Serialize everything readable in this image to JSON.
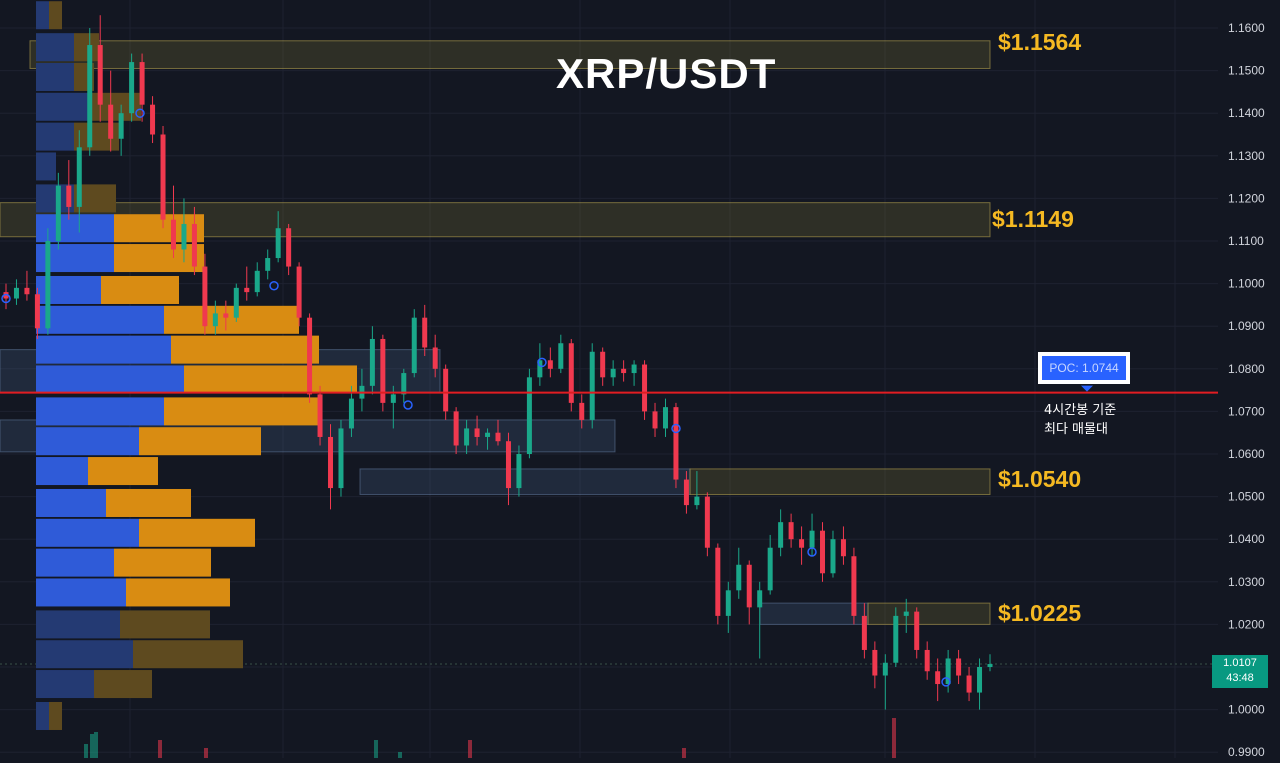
{
  "chart_data": {
    "type": "candlestick",
    "title": "XRP/USDT",
    "y_axis": {
      "range": [
        0.99,
        1.165
      ],
      "ticks": [
        "1.1600",
        "1.1500",
        "1.1400",
        "1.1300",
        "1.1200",
        "1.1100",
        "1.1000",
        "1.0900",
        "1.0800",
        "1.0700",
        "1.0600",
        "1.0500",
        "1.0400",
        "1.0300",
        "1.0200",
        "1.0100",
        "1.0000",
        "0.9900"
      ]
    },
    "grid": true,
    "current_price": {
      "value": "1.0107",
      "countdown": "43:48"
    },
    "poc": {
      "label": "POC: 1.0744",
      "value": 1.0744,
      "caption": "4시간봉 기준\n최다 매물대"
    },
    "key_levels": [
      {
        "label": "$1.1564",
        "value": 1.1564
      },
      {
        "label": "$1.1149",
        "value": 1.1149
      },
      {
        "label": "$1.0540",
        "value": 1.054
      },
      {
        "label": "$1.0225",
        "value": 1.0225
      }
    ],
    "zones": [
      {
        "top": 1.157,
        "bottom": 1.1505,
        "from": 30,
        "to": 990,
        "kind": "resistance"
      },
      {
        "top": 1.119,
        "bottom": 1.111,
        "from": 0,
        "to": 990,
        "kind": "resistance"
      },
      {
        "top": 1.0845,
        "bottom": 1.0745,
        "from": 0,
        "to": 440,
        "kind": "demand"
      },
      {
        "top": 1.068,
        "bottom": 1.0605,
        "from": 0,
        "to": 615,
        "kind": "demand"
      },
      {
        "top": 1.0565,
        "bottom": 1.0505,
        "from": 360,
        "to": 690,
        "kind": "demand"
      },
      {
        "top": 1.0565,
        "bottom": 1.0505,
        "from": 690,
        "to": 990,
        "kind": "resistance"
      },
      {
        "top": 1.025,
        "bottom": 1.02,
        "from": 760,
        "to": 868,
        "kind": "demand"
      },
      {
        "top": 1.025,
        "bottom": 1.02,
        "from": 868,
        "to": 990,
        "kind": "resistance"
      }
    ],
    "volume_profile": [
      {
        "price": 1.163,
        "buy": 13,
        "sell": 13,
        "dim": true
      },
      {
        "price": 1.1555,
        "buy": 38,
        "sell": 25,
        "dim": true
      },
      {
        "price": 1.1485,
        "buy": 38,
        "sell": 20,
        "dim": true
      },
      {
        "price": 1.1415,
        "buy": 55,
        "sell": 50,
        "dim": true
      },
      {
        "price": 1.1345,
        "buy": 38,
        "sell": 45,
        "dim": true
      },
      {
        "price": 1.1275,
        "buy": 20,
        "sell": 0,
        "dim": true
      },
      {
        "price": 1.12,
        "buy": 38,
        "sell": 42,
        "dim": true
      },
      {
        "price": 1.113,
        "buy": 78,
        "sell": 90
      },
      {
        "price": 1.106,
        "buy": 78,
        "sell": 90
      },
      {
        "price": 1.0985,
        "buy": 65,
        "sell": 78
      },
      {
        "price": 1.0915,
        "buy": 128,
        "sell": 135
      },
      {
        "price": 1.0845,
        "buy": 135,
        "sell": 148
      },
      {
        "price": 1.0775,
        "buy": 148,
        "sell": 173
      },
      {
        "price": 1.07,
        "buy": 128,
        "sell": 155
      },
      {
        "price": 1.063,
        "buy": 103,
        "sell": 122
      },
      {
        "price": 1.056,
        "buy": 52,
        "sell": 70
      },
      {
        "price": 1.0485,
        "buy": 70,
        "sell": 85
      },
      {
        "price": 1.0415,
        "buy": 103,
        "sell": 116
      },
      {
        "price": 1.0345,
        "buy": 78,
        "sell": 97
      },
      {
        "price": 1.0275,
        "buy": 90,
        "sell": 104
      },
      {
        "price": 1.02,
        "buy": 84,
        "sell": 90,
        "dim": true
      },
      {
        "price": 1.013,
        "buy": 97,
        "sell": 110,
        "dim": true
      },
      {
        "price": 1.006,
        "buy": 58,
        "sell": 58,
        "dim": true
      },
      {
        "price": 0.9985,
        "buy": 13,
        "sell": 13,
        "dim": true
      }
    ],
    "candles": [
      [
        1.098,
        1.1,
        1.094,
        1.0965
      ],
      [
        1.0965,
        1.101,
        1.095,
        1.099
      ],
      [
        1.099,
        1.103,
        1.096,
        1.0975
      ],
      [
        1.0975,
        1.099,
        1.087,
        1.0895
      ],
      [
        1.0895,
        1.113,
        1.088,
        1.11
      ],
      [
        1.11,
        1.126,
        1.108,
        1.123
      ],
      [
        1.123,
        1.129,
        1.115,
        1.118
      ],
      [
        1.118,
        1.136,
        1.112,
        1.132
      ],
      [
        1.132,
        1.16,
        1.13,
        1.156
      ],
      [
        1.156,
        1.163,
        1.138,
        1.142
      ],
      [
        1.142,
        1.15,
        1.131,
        1.134
      ],
      [
        1.134,
        1.142,
        1.13,
        1.14
      ],
      [
        1.14,
        1.154,
        1.138,
        1.152
      ],
      [
        1.152,
        1.154,
        1.138,
        1.142
      ],
      [
        1.142,
        1.144,
        1.133,
        1.135
      ],
      [
        1.135,
        1.137,
        1.113,
        1.115
      ],
      [
        1.115,
        1.123,
        1.106,
        1.108
      ],
      [
        1.108,
        1.12,
        1.105,
        1.114
      ],
      [
        1.114,
        1.118,
        1.102,
        1.104
      ],
      [
        1.104,
        1.107,
        1.088,
        1.09
      ],
      [
        1.09,
        1.096,
        1.088,
        1.093
      ],
      [
        1.093,
        1.096,
        1.089,
        1.092
      ],
      [
        1.092,
        1.1,
        1.091,
        1.099
      ],
      [
        1.099,
        1.104,
        1.096,
        1.098
      ],
      [
        1.098,
        1.105,
        1.097,
        1.103
      ],
      [
        1.103,
        1.108,
        1.101,
        1.106
      ],
      [
        1.106,
        1.117,
        1.105,
        1.113
      ],
      [
        1.113,
        1.114,
        1.102,
        1.104
      ],
      [
        1.104,
        1.105,
        1.09,
        1.092
      ],
      [
        1.092,
        1.093,
        1.072,
        1.074
      ],
      [
        1.074,
        1.076,
        1.062,
        1.064
      ],
      [
        1.064,
        1.067,
        1.047,
        1.052
      ],
      [
        1.052,
        1.068,
        1.05,
        1.066
      ],
      [
        1.066,
        1.076,
        1.064,
        1.073
      ],
      [
        1.073,
        1.08,
        1.07,
        1.076
      ],
      [
        1.076,
        1.09,
        1.074,
        1.087
      ],
      [
        1.087,
        1.088,
        1.07,
        1.072
      ],
      [
        1.072,
        1.076,
        1.066,
        1.074
      ],
      [
        1.074,
        1.08,
        1.072,
        1.079
      ],
      [
        1.079,
        1.094,
        1.078,
        1.092
      ],
      [
        1.092,
        1.095,
        1.083,
        1.085
      ],
      [
        1.085,
        1.088,
        1.078,
        1.08
      ],
      [
        1.08,
        1.081,
        1.068,
        1.07
      ],
      [
        1.07,
        1.071,
        1.06,
        1.062
      ],
      [
        1.062,
        1.068,
        1.06,
        1.066
      ],
      [
        1.066,
        1.069,
        1.062,
        1.064
      ],
      [
        1.064,
        1.066,
        1.061,
        1.065
      ],
      [
        1.065,
        1.068,
        1.062,
        1.063
      ],
      [
        1.063,
        1.065,
        1.048,
        1.052
      ],
      [
        1.052,
        1.062,
        1.05,
        1.06
      ],
      [
        1.06,
        1.08,
        1.059,
        1.078
      ],
      [
        1.078,
        1.086,
        1.076,
        1.082
      ],
      [
        1.082,
        1.085,
        1.078,
        1.08
      ],
      [
        1.08,
        1.088,
        1.079,
        1.086
      ],
      [
        1.086,
        1.087,
        1.07,
        1.072
      ],
      [
        1.072,
        1.074,
        1.066,
        1.068
      ],
      [
        1.068,
        1.086,
        1.066,
        1.084
      ],
      [
        1.084,
        1.085,
        1.076,
        1.078
      ],
      [
        1.078,
        1.082,
        1.076,
        1.08
      ],
      [
        1.08,
        1.082,
        1.077,
        1.079
      ],
      [
        1.079,
        1.082,
        1.076,
        1.081
      ],
      [
        1.081,
        1.082,
        1.068,
        1.07
      ],
      [
        1.07,
        1.072,
        1.064,
        1.066
      ],
      [
        1.066,
        1.073,
        1.064,
        1.071
      ],
      [
        1.071,
        1.072,
        1.052,
        1.054
      ],
      [
        1.054,
        1.056,
        1.046,
        1.048
      ],
      [
        1.048,
        1.056,
        1.047,
        1.05
      ],
      [
        1.05,
        1.051,
        1.036,
        1.038
      ],
      [
        1.038,
        1.039,
        1.02,
        1.022
      ],
      [
        1.022,
        1.03,
        1.018,
        1.028
      ],
      [
        1.028,
        1.038,
        1.026,
        1.034
      ],
      [
        1.034,
        1.035,
        1.02,
        1.024
      ],
      [
        1.024,
        1.03,
        1.012,
        1.028
      ],
      [
        1.028,
        1.041,
        1.027,
        1.038
      ],
      [
        1.038,
        1.047,
        1.036,
        1.044
      ],
      [
        1.044,
        1.046,
        1.038,
        1.04
      ],
      [
        1.04,
        1.043,
        1.034,
        1.038
      ],
      [
        1.038,
        1.046,
        1.036,
        1.042
      ],
      [
        1.042,
        1.044,
        1.03,
        1.032
      ],
      [
        1.032,
        1.042,
        1.031,
        1.04
      ],
      [
        1.04,
        1.043,
        1.034,
        1.036
      ],
      [
        1.036,
        1.038,
        1.02,
        1.022
      ],
      [
        1.022,
        1.025,
        1.012,
        1.014
      ],
      [
        1.014,
        1.016,
        1.005,
        1.008
      ],
      [
        1.008,
        1.013,
        1.0,
        1.011
      ],
      [
        1.011,
        1.024,
        1.01,
        1.022
      ],
      [
        1.022,
        1.026,
        1.018,
        1.023
      ],
      [
        1.023,
        1.024,
        1.012,
        1.014
      ],
      [
        1.014,
        1.016,
        1.007,
        1.009
      ],
      [
        1.009,
        1.012,
        1.002,
        1.006
      ],
      [
        1.006,
        1.014,
        1.004,
        1.012
      ],
      [
        1.012,
        1.014,
        1.006,
        1.008
      ],
      [
        1.008,
        1.01,
        1.002,
        1.004
      ],
      [
        1.004,
        1.012,
        1.0,
        1.01
      ],
      [
        1.01,
        1.013,
        1.009,
        1.0107
      ]
    ]
  }
}
